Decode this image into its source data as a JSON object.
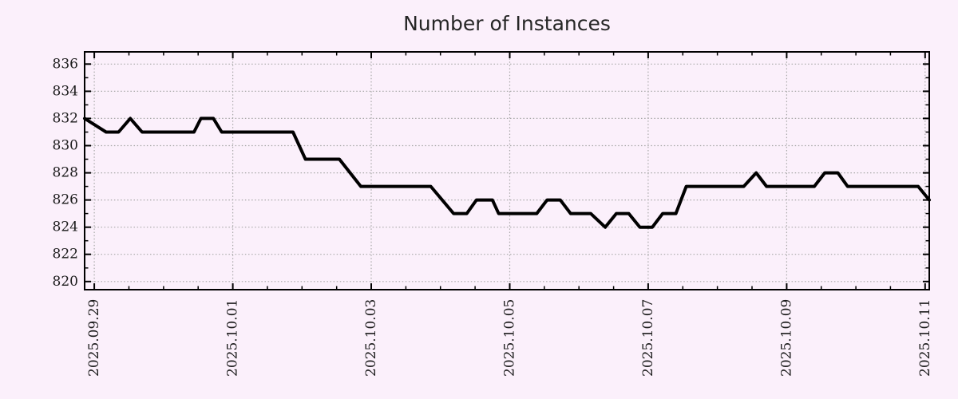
{
  "page": {
    "background_color": "#fbf0fb"
  },
  "chart_data": {
    "type": "line",
    "title": "Number of Instances",
    "xlabel": "",
    "ylabel": "",
    "legend": false,
    "grid": true,
    "x_unit": "days since 2025-09-29 00:00",
    "xlim": [
      -0.14,
      12.06
    ],
    "ylim": [
      819.4,
      836.9
    ],
    "x_major_tick_days": [
      0,
      2,
      4,
      6,
      8,
      10,
      12
    ],
    "x_tick_labels": [
      "2025.09.29",
      "2025.10.01",
      "2025.10.03",
      "2025.10.05",
      "2025.10.07",
      "2025.10.09",
      "2025.10.11"
    ],
    "x_minor_tick_interval_days": 0.5,
    "y_ticks": [
      820,
      822,
      824,
      826,
      828,
      830,
      832,
      834,
      836
    ],
    "y_minor_tick_interval": 1,
    "points": [
      [
        -0.14,
        832
      ],
      [
        0.17,
        831
      ],
      [
        0.35,
        831
      ],
      [
        0.52,
        832
      ],
      [
        0.69,
        831
      ],
      [
        1.44,
        831
      ],
      [
        1.54,
        832
      ],
      [
        1.72,
        832
      ],
      [
        1.84,
        831
      ],
      [
        2.87,
        831
      ],
      [
        3.05,
        829
      ],
      [
        3.54,
        829
      ],
      [
        3.85,
        827
      ],
      [
        4.86,
        827
      ],
      [
        5.19,
        825
      ],
      [
        5.38,
        825
      ],
      [
        5.52,
        826
      ],
      [
        5.75,
        826
      ],
      [
        5.84,
        825
      ],
      [
        6.39,
        825
      ],
      [
        6.54,
        826
      ],
      [
        6.73,
        826
      ],
      [
        6.88,
        825
      ],
      [
        7.17,
        825
      ],
      [
        7.38,
        824
      ],
      [
        7.54,
        825
      ],
      [
        7.72,
        825
      ],
      [
        7.88,
        824
      ],
      [
        8.06,
        824
      ],
      [
        8.21,
        825
      ],
      [
        8.4,
        825
      ],
      [
        8.55,
        827
      ],
      [
        9.38,
        827
      ],
      [
        9.56,
        828
      ],
      [
        9.71,
        827
      ],
      [
        10.4,
        827
      ],
      [
        10.55,
        828
      ],
      [
        10.74,
        828
      ],
      [
        10.88,
        827
      ],
      [
        11.9,
        827
      ],
      [
        12.06,
        826
      ]
    ],
    "colors": {
      "background": "#fbf0fb",
      "line": "#000000",
      "grid": "#a8a8a8",
      "border": "#000000",
      "tick_text": "#1a1a1a",
      "title_text": "#262626"
    }
  }
}
